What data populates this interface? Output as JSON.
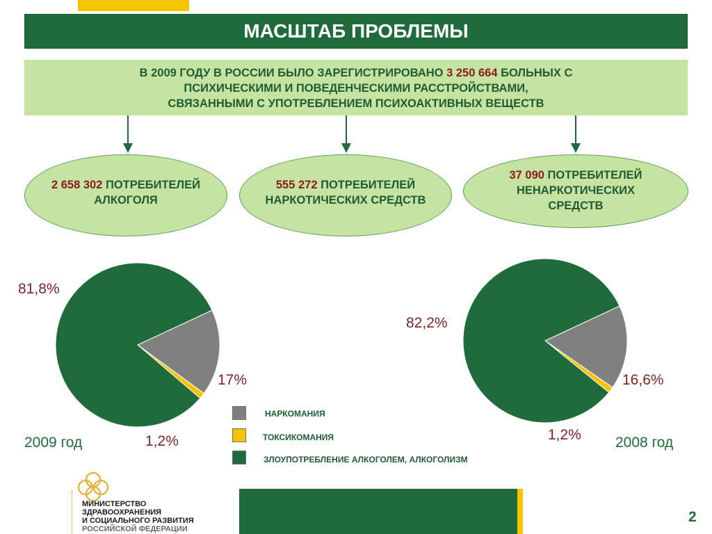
{
  "title": "МАСШТАБ ПРОБЛЕМЫ",
  "intro": {
    "line1_pre": "В 2009 ГОДУ В РОССИИ БЫЛО ЗАРЕГИСТРИРОВАНО ",
    "line1_num": "3 250 664",
    "line1_post": " БОЛЬНЫХ С",
    "line2": "ПСИХИЧЕСКИМИ И ПОВЕДЕНЧЕСКИМИ РАССТРОЙСТВАМИ,",
    "line3": "СВЯЗАННЫМИ С УПОТРЕБЛЕНИЕМ ПСИХОАКТИВНЫХ ВЕЩЕСТВ"
  },
  "groups": [
    {
      "number": "2 658 302",
      "text1": " ПОТРЕБИТЕЛЕЙ",
      "text2": "АЛКОГОЛЯ"
    },
    {
      "number": "555 272",
      "text1": " ПОТРЕБИТЕЛЕЙ",
      "text2": "НАРКОТИЧЕСКИХ СРЕДСТВ"
    },
    {
      "number": "37 090",
      "text1": " ПОТРЕБИТЕЛЕЙ",
      "text2": "НЕНАРКОТИЧЕСКИХ",
      "text3": "СРЕДСТВ"
    }
  ],
  "colors": {
    "narcomania": "#808080",
    "toxicomania": "#f5c400",
    "alcohol": "#206b3b"
  },
  "chart_data": [
    {
      "type": "pie",
      "title": "2009 год",
      "labels": [
        "НАРКОМАНИЯ",
        "ТОКСИКОМАНИЯ",
        "ЗЛОУПОТРЕБЛЕНИЕ АЛКОГОЛЕМ, АЛКОГОЛИЗМ"
      ],
      "values": [
        17,
        1.2,
        81.8
      ],
      "value_labels": [
        "17%",
        "1,2%",
        "81,8%"
      ]
    },
    {
      "type": "pie",
      "title": "2008 год",
      "labels": [
        "НАРКОМАНИЯ",
        "ТОКСИКОМАНИЯ",
        "ЗЛОУПОТРЕБЛЕНИЕ АЛКОГОЛЕМ, АЛКОГОЛИЗМ"
      ],
      "values": [
        16.6,
        1.2,
        82.2
      ],
      "value_labels": [
        "16,6%",
        "1,2%",
        "82,2%"
      ]
    }
  ],
  "legend": [
    "НАРКОМАНИЯ",
    "ТОКСИКОМАНИЯ",
    "ЗЛОУПОТРЕБЛЕНИЕ АЛКОГОЛЕМ, АЛКОГОЛИЗМ"
  ],
  "logo": {
    "line1": "МИНИСТЕРСТВО",
    "line2": "ЗДРАВООХРАНЕНИЯ",
    "line3": "И СОЦИАЛЬНОГО РАЗВИТИЯ",
    "line4": "РОССИЙСКОЙ ФЕДЕРАЦИИ"
  },
  "page_number": "2"
}
